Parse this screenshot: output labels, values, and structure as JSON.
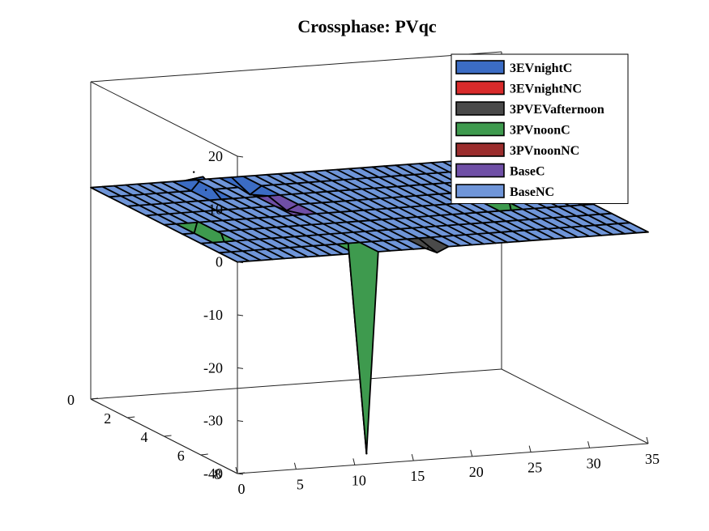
{
  "chart_data": {
    "type": "surface3d",
    "title": "Crossphase: PVqc",
    "xlabel": "",
    "ylabel": "",
    "zlabel": "",
    "xlim": [
      0,
      35
    ],
    "ylim": [
      0,
      8
    ],
    "zlim": [
      -40,
      20
    ],
    "x_ticks": [
      "0",
      "5",
      "10",
      "15",
      "20",
      "25",
      "30",
      "35"
    ],
    "y_ticks": [
      "0",
      "2",
      "4",
      "6",
      "8"
    ],
    "z_ticks": [
      "20",
      "10",
      "0",
      "-10",
      "-20",
      "-30",
      "-40"
    ],
    "grid": false,
    "box": true,
    "legend_position": "top-right",
    "series": [
      {
        "name": "3EVnightC",
        "color": "#3b6cc4",
        "peaks": [
          {
            "x": 8,
            "y": 0.5,
            "z": 2.5
          },
          {
            "x": 12,
            "y": 1,
            "z": -1.5
          }
        ]
      },
      {
        "name": "3EVnightNC",
        "color": "#d92b2b",
        "peaks": []
      },
      {
        "name": "3PVEVafternoon",
        "color": "#4a4a4a",
        "peaks": [
          {
            "x": 17,
            "y": 7.5,
            "z": -1
          }
        ]
      },
      {
        "name": "3PVnoonC",
        "color": "#3e9a4e",
        "peaks": [
          {
            "x": 2,
            "y": 5,
            "z": 8
          },
          {
            "x": 28,
            "y": 4,
            "z": 15
          },
          {
            "x": 11,
            "y": 8,
            "z": -38
          }
        ]
      },
      {
        "name": "3PVnoonNC",
        "color": "#9b2d2d",
        "peaks": []
      },
      {
        "name": "BaseC",
        "color": "#6f4fa6",
        "peaks": [
          {
            "x": 12,
            "y": 3,
            "z": -1
          }
        ]
      },
      {
        "name": "BaseNC",
        "color": "#6f95d8",
        "peaks": []
      }
    ]
  }
}
